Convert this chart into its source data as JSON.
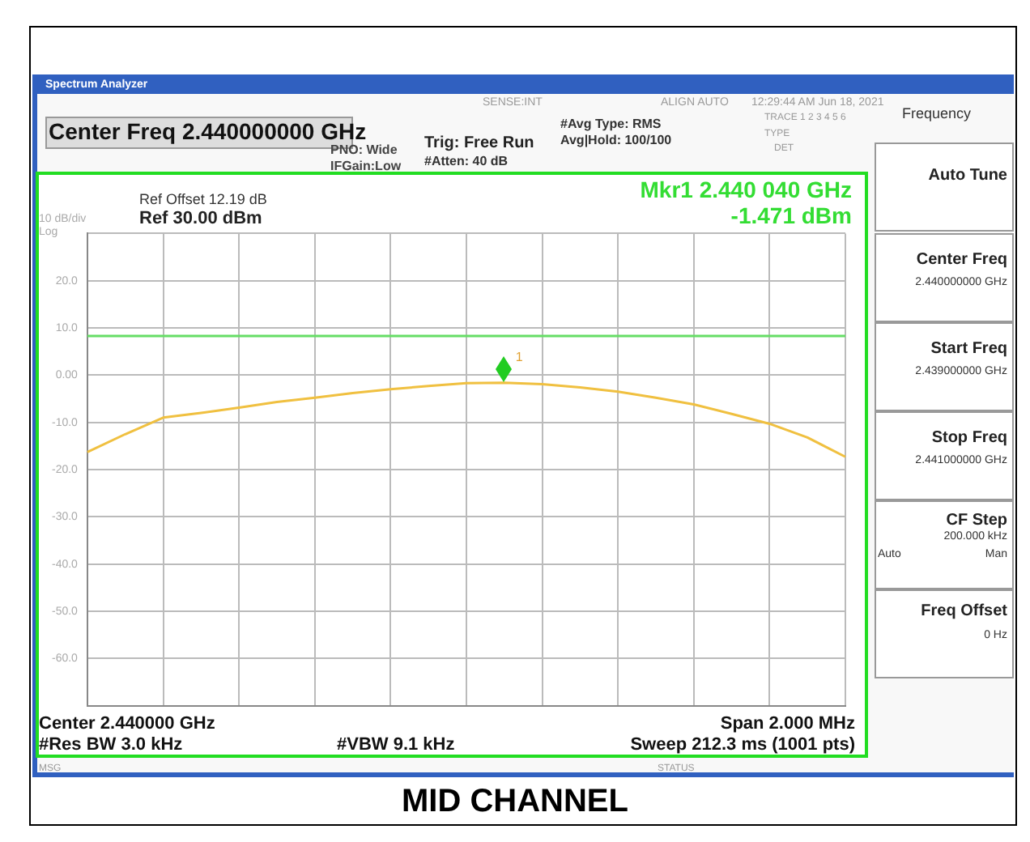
{
  "chart_data": {
    "type": "line",
    "title": "MID CHANNEL",
    "categories": [
      null,
      null,
      null,
      null,
      null,
      null,
      null,
      null,
      null,
      null,
      null,
      null,
      null,
      null,
      null,
      null,
      null,
      null,
      null,
      null,
      null
    ],
    "series": [
      {
        "color": "#f0c040",
        "values": [
          -16.3,
          -12.5,
          -9,
          -8,
          -6.9,
          -5.7,
          -4.8,
          -3.8,
          -3,
          -2.3,
          -1.7,
          -1.6,
          -1.9,
          -2.6,
          -3.5,
          -4.8,
          -6.2,
          -8.2,
          -10.3,
          -13.2,
          -17.3
        ]
      }
    ],
    "ylim": [
      -70,
      30
    ],
    "yticks": [
      {
        "value": 30,
        "label": null
      },
      {
        "value": 20,
        "label": "20.0"
      },
      {
        "value": 10,
        "label": "10.0"
      },
      {
        "value": 0,
        "label": "0.00"
      },
      {
        "value": -10,
        "label": "-10.0"
      },
      {
        "value": -20,
        "label": "-20.0"
      },
      {
        "value": -30,
        "label": "-30.0"
      },
      {
        "value": -40,
        "label": "-40.0"
      },
      {
        "value": -50,
        "label": "-50.0"
      },
      {
        "value": -60,
        "label": "-60.0"
      },
      {
        "value": -70,
        "label": null
      }
    ],
    "ref_lines": [
      {
        "axis": "y",
        "value": 8.3,
        "color": "#66dd66"
      }
    ],
    "grid": true,
    "tick_labels": "y",
    "marker": "none",
    "line_style": "solid",
    "annotations": [
      {
        "text": "1",
        "y": -1.471
      },
      "Spectrum Analyzer",
      "SENSE:INT",
      "ALIGN AUTO",
      "12:29:44 AM Jun 18, 2021",
      "Center Freq 2.440000000 GHz",
      "PNO: Wide",
      "IFGain:Low",
      "Trig: Free Run",
      "#Atten: 40 dB",
      "#Avg Type: RMS",
      "Avg|Hold: 100/100",
      "TRACE 1 2 3 4 5 6",
      "TYPE",
      "DET",
      "Ref Offset 12.19 dB",
      "Ref 30.00 dBm",
      "10 dB/div",
      "Log",
      "Mkr1 2.440 040 GHz",
      "-1.471 dBm",
      "Center 2.440000 GHz",
      "Span 2.000 MHz",
      "#Res BW 3.0 kHz",
      "#VBW 9.1 kHz",
      "Sweep  212.3 ms (1001 pts)",
      "MSG",
      "STATUS",
      "Frequency",
      "Auto Tune",
      "Center Freq",
      "2.440000000 GHz",
      "Start Freq",
      "2.439000000 GHz",
      "Stop Freq",
      "2.441000000 GHz",
      "CF Step",
      "200.000 kHz",
      "Auto",
      "Man",
      "Freq Offset",
      "0 Hz"
    ]
  }
}
